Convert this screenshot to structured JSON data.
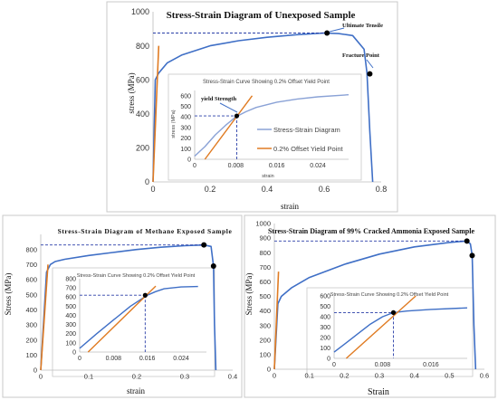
{
  "chart_data": [
    {
      "type": "line",
      "title": "Stress-Strain Diagram of Unexposed Sample",
      "xlabel": "strain",
      "ylabel": "stress (MPa)",
      "xlim": [
        0,
        0.8
      ],
      "ylim": [
        0,
        1000
      ],
      "xticks": [
        "0",
        "0.2",
        "0.4",
        "0.6",
        "0.8"
      ],
      "yticks": [
        "0",
        "200",
        "400",
        "600",
        "800",
        "1000"
      ],
      "annotations": [
        "Ultimate Tensile",
        "Fracture Point"
      ],
      "series": [
        {
          "name": "",
          "color": "#3f6fc6",
          "x": [
            0,
            0.008,
            0.02,
            0.05,
            0.1,
            0.2,
            0.3,
            0.4,
            0.5,
            0.6,
            0.65,
            0.7,
            0.74,
            0.75,
            0.76,
            0.77
          ],
          "y": [
            0,
            600,
            640,
            700,
            745,
            800,
            830,
            850,
            865,
            875,
            872,
            860,
            780,
            640,
            300,
            0
          ]
        },
        {
          "name": "",
          "color": "#e07b22",
          "x": [
            0,
            0.02
          ],
          "y": [
            0,
            800
          ]
        }
      ],
      "points": [
        {
          "x": 0.61,
          "y": 875
        },
        {
          "x": 0.76,
          "y": 635
        }
      ],
      "inset": {
        "title": "Stress-Strain Curve Showing 0.2% Offset Yield Point",
        "xlabel": "strain",
        "ylabel": "stress (MPa)",
        "xlim": [
          0,
          0.03
        ],
        "ylim": [
          0,
          650
        ],
        "xticks": [
          "0",
          "0.008",
          "0.016",
          "0.024"
        ],
        "yticks": [
          "0",
          "100",
          "200",
          "300",
          "400",
          "500",
          "600"
        ],
        "annotation": "yield Strength",
        "yield_point": {
          "x": 0.0082,
          "y": 410
        },
        "legend": [
          "Stress-Strain Diagram",
          "0.2% Offset Yield Point"
        ],
        "series": [
          {
            "name": "Stress-Strain Diagram",
            "color": "#8aa2d6",
            "x": [
              0,
              0.002,
              0.004,
              0.006,
              0.008,
              0.01,
              0.012,
              0.016,
              0.02,
              0.024,
              0.03
            ],
            "y": [
              30,
              120,
              230,
              320,
              400,
              450,
              490,
              540,
              570,
              590,
              610
            ]
          },
          {
            "name": "0.2% Offset Yield Point",
            "color": "#e07b22",
            "x": [
              0.002,
              0.0112
            ],
            "y": [
              0,
              600
            ]
          }
        ]
      }
    },
    {
      "type": "line",
      "title": "Stress-Strain Diagram of Methane Exposed Sample",
      "xlabel": "strain",
      "ylabel": "Stress (MPa)",
      "xlim": [
        0,
        0.4
      ],
      "ylim": [
        0,
        900
      ],
      "xticks": [
        "0",
        "0.1",
        "0.2",
        "0.3",
        "0.4"
      ],
      "yticks": [
        "0",
        "100",
        "200",
        "300",
        "400",
        "500",
        "600",
        "700",
        "800"
      ],
      "series": [
        {
          "name": "",
          "color": "#3f6fc6",
          "x": [
            0,
            0.012,
            0.02,
            0.03,
            0.05,
            0.1,
            0.15,
            0.2,
            0.25,
            0.3,
            0.34,
            0.355,
            0.36,
            0.362,
            0.365
          ],
          "y": [
            0,
            650,
            700,
            720,
            735,
            760,
            780,
            800,
            815,
            825,
            830,
            820,
            690,
            300,
            0
          ]
        },
        {
          "name": "",
          "color": "#e07b22",
          "x": [
            0,
            0.015
          ],
          "y": [
            0,
            700
          ]
        }
      ],
      "points": [
        {
          "x": 0.34,
          "y": 830
        },
        {
          "x": 0.36,
          "y": 690
        }
      ],
      "inset": {
        "title": "Stress-Strain Curve Showing 0.2% Offset Yield Point",
        "xlim": [
          0,
          0.03
        ],
        "ylim": [
          0,
          800
        ],
        "xticks": [
          "0",
          "0.008",
          "0.016",
          "0.024"
        ],
        "yticks": [
          "0",
          "100",
          "200",
          "300",
          "400",
          "500",
          "600",
          "700",
          "800"
        ],
        "yield_point": {
          "x": 0.0155,
          "y": 620
        },
        "series": [
          {
            "name": "",
            "color": "#3f6fc6",
            "x": [
              0,
              0.004,
              0.008,
              0.012,
              0.016,
              0.018,
              0.02,
              0.024,
              0.028
            ],
            "y": [
              40,
              200,
              350,
              500,
              620,
              660,
              690,
              710,
              715
            ]
          },
          {
            "name": "",
            "color": "#e07b22",
            "x": [
              0.002,
              0.018
            ],
            "y": [
              0,
              720
            ]
          }
        ]
      }
    },
    {
      "type": "line",
      "title": "Stress-Strain Diagram of 99% Cracked Ammonia Exposed Sample",
      "xlabel": "Strain",
      "ylabel": "Stress (MPa)",
      "xlim": [
        0,
        0.6
      ],
      "ylim": [
        0,
        1000
      ],
      "xticks": [
        "0",
        "0.1",
        "0.2",
        "0.3",
        "0.4",
        "0.5",
        "0.6"
      ],
      "yticks": [
        "0",
        "100",
        "200",
        "300",
        "400",
        "500",
        "600",
        "700",
        "800",
        "900",
        "1000"
      ],
      "series": [
        {
          "name": "",
          "color": "#3f6fc6",
          "x": [
            0,
            0.01,
            0.02,
            0.05,
            0.1,
            0.2,
            0.3,
            0.4,
            0.5,
            0.55,
            0.56,
            0.565,
            0.57,
            0.575
          ],
          "y": [
            0,
            450,
            500,
            560,
            630,
            720,
            790,
            840,
            870,
            880,
            860,
            780,
            300,
            0
          ]
        },
        {
          "name": "",
          "color": "#e07b22",
          "x": [
            0,
            0.012
          ],
          "y": [
            0,
            670
          ]
        }
      ],
      "points": [
        {
          "x": 0.55,
          "y": 880
        },
        {
          "x": 0.565,
          "y": 780
        }
      ],
      "inset": {
        "title": "Stress-Strain Curve Showing 0.2% Offset Yield Point",
        "xlim": [
          0,
          0.022
        ],
        "ylim": [
          0,
          600
        ],
        "xticks": [
          "0",
          "0.008",
          "0.016"
        ],
        "yticks": [
          "0",
          "100",
          "200",
          "300",
          "400",
          "500",
          "600"
        ],
        "yield_point": {
          "x": 0.0098,
          "y": 440
        },
        "series": [
          {
            "name": "",
            "color": "#3f6fc6",
            "x": [
              0,
              0.002,
              0.004,
              0.006,
              0.008,
              0.0098,
              0.012,
              0.016,
              0.022
            ],
            "y": [
              60,
              150,
              240,
              330,
              400,
              440,
              455,
              470,
              485
            ]
          },
          {
            "name": "",
            "color": "#e07b22",
            "x": [
              0.002,
              0.0135
            ],
            "y": [
              0,
              600
            ]
          }
        ]
      }
    }
  ]
}
